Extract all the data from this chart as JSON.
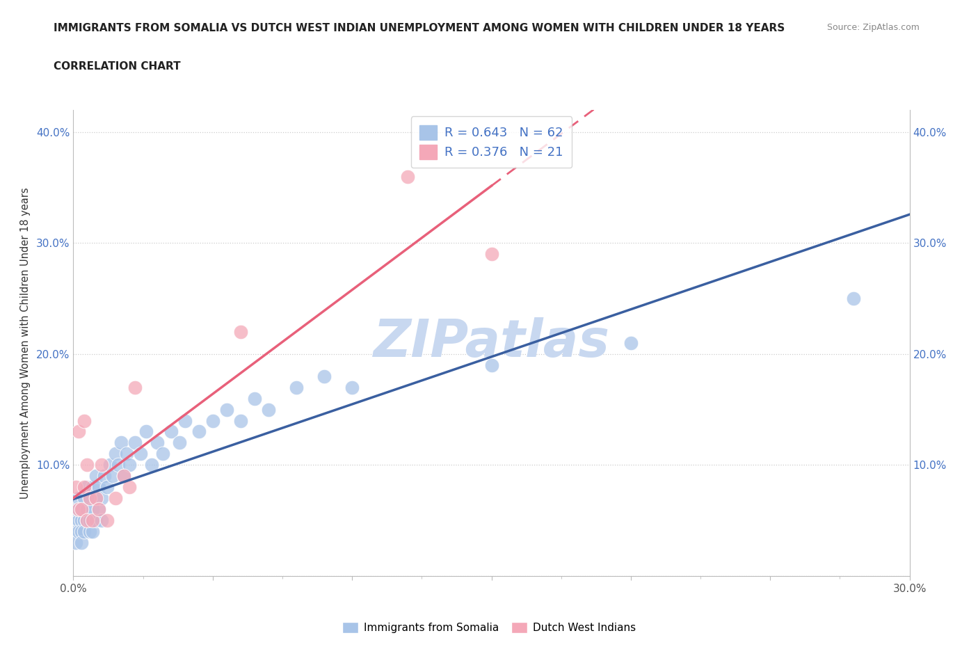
{
  "title": "IMMIGRANTS FROM SOMALIA VS DUTCH WEST INDIAN UNEMPLOYMENT AMONG WOMEN WITH CHILDREN UNDER 18 YEARS",
  "subtitle": "CORRELATION CHART",
  "source": "Source: ZipAtlas.com",
  "ylabel": "Unemployment Among Women with Children Under 18 years",
  "xlim": [
    0.0,
    0.3
  ],
  "ylim": [
    0.0,
    0.42
  ],
  "x_ticks": [
    0.0,
    0.05,
    0.1,
    0.15,
    0.2,
    0.25,
    0.3
  ],
  "y_ticks": [
    0.0,
    0.1,
    0.2,
    0.3,
    0.4
  ],
  "legend1_label": "R = 0.643   N = 62",
  "legend2_label": "R = 0.376   N = 21",
  "color_somalia": "#A8C4E8",
  "color_dwi": "#F4A8B8",
  "color_somalia_line": "#3A5FA0",
  "color_dwi_line": "#E8607A",
  "watermark": "ZIPatlas",
  "watermark_color": "#C8D8F0",
  "somalia_x": [
    0.0,
    0.001,
    0.001,
    0.001,
    0.002,
    0.002,
    0.002,
    0.002,
    0.003,
    0.003,
    0.003,
    0.003,
    0.004,
    0.004,
    0.004,
    0.005,
    0.005,
    0.005,
    0.006,
    0.006,
    0.006,
    0.007,
    0.007,
    0.007,
    0.008,
    0.008,
    0.008,
    0.009,
    0.009,
    0.01,
    0.01,
    0.011,
    0.012,
    0.013,
    0.014,
    0.015,
    0.016,
    0.017,
    0.018,
    0.019,
    0.02,
    0.022,
    0.024,
    0.026,
    0.028,
    0.03,
    0.032,
    0.035,
    0.038,
    0.04,
    0.045,
    0.05,
    0.055,
    0.06,
    0.065,
    0.07,
    0.08,
    0.09,
    0.1,
    0.15,
    0.2,
    0.28
  ],
  "somalia_y": [
    0.05,
    0.04,
    0.06,
    0.03,
    0.05,
    0.06,
    0.04,
    0.07,
    0.05,
    0.04,
    0.06,
    0.03,
    0.05,
    0.07,
    0.04,
    0.06,
    0.05,
    0.08,
    0.04,
    0.07,
    0.05,
    0.06,
    0.08,
    0.04,
    0.07,
    0.05,
    0.09,
    0.06,
    0.08,
    0.05,
    0.07,
    0.09,
    0.08,
    0.1,
    0.09,
    0.11,
    0.1,
    0.12,
    0.09,
    0.11,
    0.1,
    0.12,
    0.11,
    0.13,
    0.1,
    0.12,
    0.11,
    0.13,
    0.12,
    0.14,
    0.13,
    0.14,
    0.15,
    0.14,
    0.16,
    0.15,
    0.17,
    0.18,
    0.17,
    0.19,
    0.21,
    0.25
  ],
  "dwi_x": [
    0.001,
    0.002,
    0.002,
    0.003,
    0.004,
    0.004,
    0.005,
    0.005,
    0.006,
    0.007,
    0.008,
    0.009,
    0.01,
    0.012,
    0.015,
    0.018,
    0.02,
    0.022,
    0.06,
    0.12,
    0.15
  ],
  "dwi_y": [
    0.08,
    0.06,
    0.13,
    0.06,
    0.08,
    0.14,
    0.05,
    0.1,
    0.07,
    0.05,
    0.07,
    0.06,
    0.1,
    0.05,
    0.07,
    0.09,
    0.08,
    0.17,
    0.22,
    0.36,
    0.29
  ]
}
